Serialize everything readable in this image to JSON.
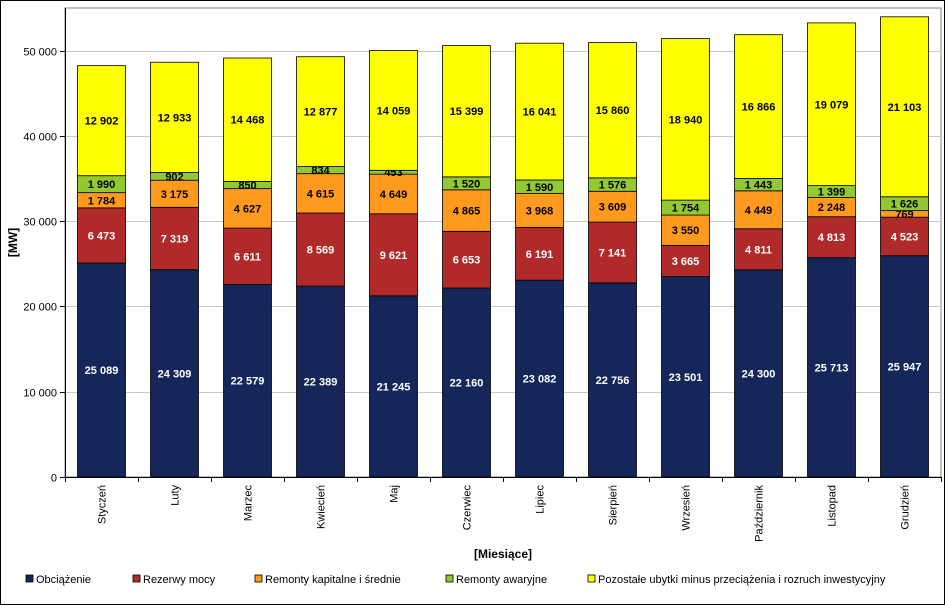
{
  "chart_data": {
    "type": "bar",
    "stacked": true,
    "ylabel": "[MW]",
    "xlabel": "[Miesiące]",
    "ylim": [
      0,
      55000
    ],
    "yticks": [
      0,
      10000,
      20000,
      30000,
      40000,
      50000
    ],
    "ytick_labels": [
      "0",
      "10 000",
      "20 000",
      "30 000",
      "40 000",
      "50 000"
    ],
    "grid": "horizontal",
    "legend_position": "bottom",
    "categories": [
      "Styczeń",
      "Luty",
      "Marzec",
      "Kwiecień",
      "Maj",
      "Czerwiec",
      "Lipiec",
      "Sierpień",
      "Wrzesień",
      "Październik",
      "Listopad",
      "Grudzień"
    ],
    "series": [
      {
        "name": "Obciążenie",
        "color": "#15275a",
        "label_color": "#ffffff",
        "values": [
          25089,
          24309,
          22579,
          22389,
          21245,
          22160,
          23082,
          22756,
          23501,
          24300,
          25713,
          25947
        ],
        "labels": [
          "25 089",
          "24 309",
          "22 579",
          "22 389",
          "21 245",
          "22 160",
          "23 082",
          "22 756",
          "23 501",
          "24 300",
          "25 713",
          "25 947"
        ]
      },
      {
        "name": "Rezerwy mocy",
        "color": "#b02a2a",
        "label_color": "#ffffff",
        "values": [
          6473,
          7319,
          6611,
          8569,
          9621,
          6653,
          6191,
          7141,
          3665,
          4811,
          4813,
          4523
        ],
        "labels": [
          "6 473",
          "7 319",
          "6 611",
          "8 569",
          "9 621",
          "6 653",
          "6 191",
          "7 141",
          "3 665",
          "4 811",
          "4 813",
          "4 523"
        ]
      },
      {
        "name": "Remonty kapitalne i średnie",
        "color": "#ff9a1e",
        "label_color": "#000000",
        "values": [
          1784,
          3175,
          4627,
          4615,
          4649,
          4865,
          3968,
          3609,
          3550,
          4449,
          2248,
          769
        ],
        "labels": [
          "1 784",
          "3 175",
          "4 627",
          "4 615",
          "4 649",
          "4 865",
          "3 968",
          "3 609",
          "3 550",
          "4 449",
          "2 248",
          "769"
        ]
      },
      {
        "name": "Remonty awaryjne",
        "color": "#92c832",
        "label_color": "#000000",
        "values": [
          1990,
          902,
          850,
          834,
          453,
          1520,
          1590,
          1576,
          1754,
          1443,
          1399,
          1626
        ],
        "labels": [
          "1 990",
          "902",
          "850",
          "834",
          "453",
          "1 520",
          "1 590",
          "1 576",
          "1 754",
          "1 443",
          "1 399",
          "1 626"
        ]
      },
      {
        "name": "Pozostałe ubytki minus przeciążenia i rozruch inwestycyjny",
        "color": "#ffff00",
        "label_color": "#000000",
        "values": [
          12902,
          12933,
          14468,
          12877,
          14059,
          15399,
          16041,
          15860,
          18940,
          16866,
          19079,
          21103
        ],
        "labels": [
          "12 902",
          "12 933",
          "14 468",
          "12 877",
          "14 059",
          "15 399",
          "16 041",
          "15 860",
          "18 940",
          "16 866",
          "19 079",
          "21 103"
        ]
      }
    ]
  }
}
